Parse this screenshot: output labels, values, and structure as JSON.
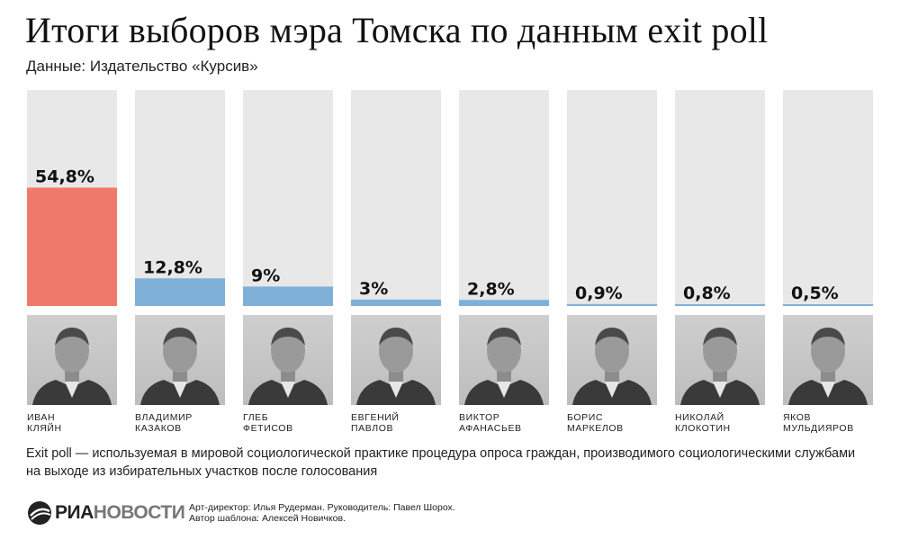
{
  "header": {
    "title": "Итоги выборов мэра Томска по данным exit poll",
    "subtitle": "Данные: Издательство «Курсив»"
  },
  "chart_data": {
    "type": "bar",
    "title": "Итоги выборов мэра Томска по данным exit poll",
    "categories": [
      "Иван Кляйн",
      "Владимир Казаков",
      "Глеб Фетисов",
      "Евгений Павлов",
      "Виктор Афанасьев",
      "Борис Маркелов",
      "Николай Клокотин",
      "Яков Мульдияров"
    ],
    "values": [
      54.8,
      12.8,
      9,
      3,
      2.8,
      0.9,
      0.8,
      0.5
    ],
    "labels": [
      "54,8%",
      "12,8%",
      "9%",
      "3%",
      "2,8%",
      "0,9%",
      "0,8%",
      "0,5%"
    ],
    "unit": "%",
    "ylim": [
      0,
      100
    ],
    "grid": false,
    "legend": "none",
    "colors": {
      "winner": "#ef7a6c",
      "bar": "#7fb0d8",
      "track": "#e8e8e8"
    }
  },
  "candidates": [
    {
      "first": "Иван",
      "last": "Кляйн"
    },
    {
      "first": "Владимир",
      "last": "Казаков"
    },
    {
      "first": "Глеб",
      "last": "Фетисов"
    },
    {
      "first": "Евгений",
      "last": "Павлов"
    },
    {
      "first": "Виктор",
      "last": "Афанасьев"
    },
    {
      "first": "Борис",
      "last": "Маркелов"
    },
    {
      "first": "Николай",
      "last": "Клокотин"
    },
    {
      "first": "Яков",
      "last": "Мульдияров"
    }
  ],
  "note": "Exit poll — используемая в мировой социологической практике процедура опроса граждан, производимого социологическими службами на выходе из избирательных участков после голосования",
  "footer": {
    "logo": "РИАНОВОСТИ",
    "logo_part1": "РИА",
    "logo_part2": "НОВОСТИ",
    "credit_line1": "Арт-директор: Илья Рудерман. Руководитель: Павел Шорох.",
    "credit_line2": "Автор шаблона: Алексей Новичков."
  }
}
